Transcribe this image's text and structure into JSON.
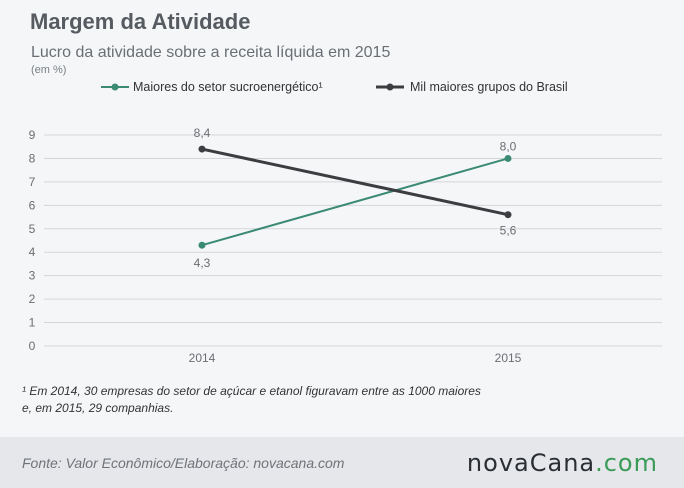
{
  "header": {
    "title": "Margem da Atividade",
    "subtitle": "Lucro da atividade sobre a receita líquida em 2015",
    "unit": "(em %)"
  },
  "colors": {
    "series_1": "#3a8a74",
    "series_2": "#3b3d40",
    "grid": "#d3d5d8",
    "axis_text": "#6a6e72"
  },
  "chart_data": {
    "type": "line",
    "categories": [
      "2014",
      "2015"
    ],
    "ylim": [
      0,
      9
    ],
    "yticks": [
      "0",
      "1",
      "2",
      "3",
      "4",
      "5",
      "6",
      "7",
      "8",
      "9"
    ],
    "grid": true,
    "legend": "top",
    "series": [
      {
        "name": "Maiores do setor sucroenergético¹",
        "values": [
          4.3,
          8.0
        ],
        "labels": [
          "4,3",
          "8,0"
        ],
        "color": "#3a8a74"
      },
      {
        "name": "Mil maiores grupos do Brasil",
        "values": [
          8.4,
          5.6
        ],
        "labels": [
          "8,4",
          "5,6"
        ],
        "color": "#3b3d40"
      }
    ]
  },
  "footnote": {
    "line1": "¹ Em 2014, 30 empresas  do setor de açúcar e etanol figuravam entre as 1000 maiores",
    "line2": "e, em 2015, 29 companhias."
  },
  "footer": {
    "source": "Fonte:  Valor  Econômico/Elaboração: novacana.com",
    "brand_part1": "novaCana",
    "brand_part2": ".com"
  }
}
